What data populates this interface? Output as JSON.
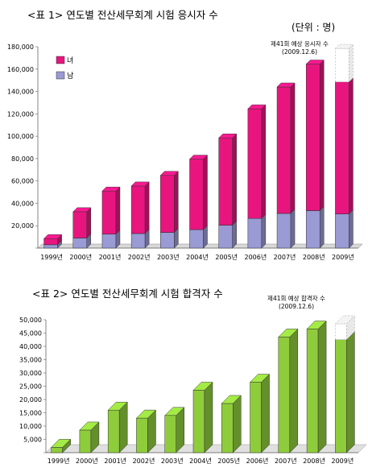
{
  "chart_data": [
    {
      "type": "bar",
      "stacked": true,
      "title": "<표 1> 연도별 전산세무회계 시험 응시자 수",
      "unit_label": "(단위 : 명)",
      "categories": [
        "1999년",
        "2000년",
        "2001년",
        "2002년",
        "2003년",
        "2004년",
        "2005년",
        "2006년",
        "2007년",
        "2008년",
        "2009년"
      ],
      "series": [
        {
          "name": "남",
          "values": [
            3000,
            9000,
            12500,
            13000,
            14000,
            16500,
            20500,
            26500,
            31000,
            33500,
            30500
          ],
          "color": "#9a9ad4"
        },
        {
          "name": "녀",
          "values": [
            5500,
            23500,
            38500,
            42500,
            51000,
            63000,
            78000,
            98000,
            113000,
            131000,
            118000
          ],
          "color": "#e8157f"
        }
      ],
      "forecast": {
        "category": "2009년",
        "extra": 30000,
        "label_line1": "제41회 예상 응시자 수",
        "label_line2": "(2009.12.6)"
      },
      "ylim": [
        0,
        180000
      ],
      "yticks": [
        "",
        "20,000",
        "40,000",
        "60,000",
        "80,000",
        "100,000",
        "120,000",
        "140,000",
        "160,000",
        "180,000"
      ],
      "legend_placement": "top-left",
      "grid": false
    },
    {
      "type": "bar",
      "title": "<표 2> 연도별 전산세무회계 시험 합격자 수",
      "categories": [
        "1999년",
        "2000년",
        "2001년",
        "2002년",
        "2003년",
        "2004년",
        "2005년",
        "2006년",
        "2007년",
        "2008년",
        "2009년"
      ],
      "series": [
        {
          "values": [
            2000,
            8500,
            16000,
            13000,
            14000,
            23500,
            18500,
            26500,
            43500,
            46500,
            42500
          ],
          "color": "#8fcc3c"
        }
      ],
      "forecast": {
        "category": "2009년",
        "extra": 6000,
        "label_line1": "제41회 예상 합격자 수",
        "label_line2": "(2009.12.6)"
      },
      "ylim": [
        0,
        50000
      ],
      "yticks": [
        "",
        "5,000",
        "10,000",
        "15,000",
        "20,000",
        "25,000",
        "30,000",
        "35,000",
        "40,000",
        "45,000",
        "50,000"
      ],
      "grid": false
    }
  ]
}
